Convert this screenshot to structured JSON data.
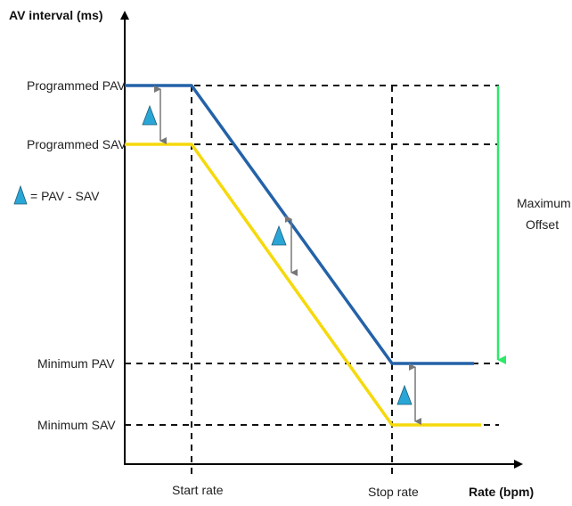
{
  "axes": {
    "y_title": "AV interval (ms)",
    "x_title": "Rate (bpm)"
  },
  "y_labels": {
    "programmed_pav": "Programmed PAV",
    "programmed_sav": "Programmed SAV",
    "minimum_pav": "Minimum  PAV",
    "minimum_sav": "Minimum  SAV"
  },
  "x_labels": {
    "start_rate": "Start rate",
    "stop_rate": "Stop rate"
  },
  "legend": {
    "delta_definition": "= PAV - SAV",
    "delta_symbol": "triangle-icon"
  },
  "max_offset": {
    "line1": "Maximum",
    "line2": "Offset"
  },
  "colors": {
    "pav_line": "#2462a8",
    "sav_line": "#f5d90a",
    "offset_arrow": "#2ee86a",
    "delta_triangle": "#2aa6d6",
    "dashed_guides": "#111111",
    "axes": "#000000",
    "diff_arrows": "#777777"
  }
}
